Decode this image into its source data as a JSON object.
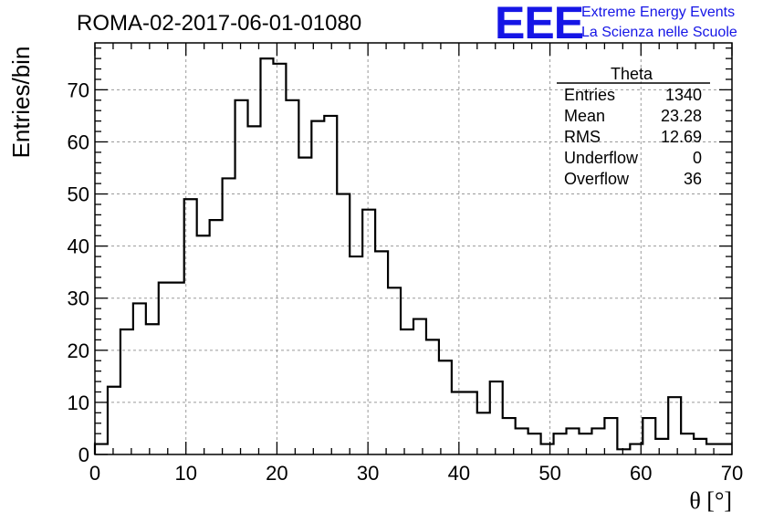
{
  "header": {
    "run_title": "ROMA-02-2017-06-01-01080",
    "logo_text": "EEE",
    "logo_line1": "Extreme Energy Events",
    "logo_line2": "La Scienza nelle Scuole",
    "logo_color": "#1515e6"
  },
  "stats": {
    "name": "Theta",
    "rows": [
      {
        "label": "Entries",
        "value": "1340"
      },
      {
        "label": "Mean",
        "value": "23.28"
      },
      {
        "label": "RMS",
        "value": "12.69"
      },
      {
        "label": "Underflow",
        "value": "0"
      },
      {
        "label": "Overflow",
        "value": "36"
      }
    ]
  },
  "chart_data": {
    "type": "histogram",
    "title": "ROMA-02-2017-06-01-01080",
    "xlabel": "θ [°]",
    "ylabel": "Entries/bin",
    "xlim": [
      0,
      70
    ],
    "ylim": [
      0,
      79
    ],
    "xticks": [
      0,
      10,
      20,
      30,
      40,
      50,
      60,
      70
    ],
    "yticks": [
      0,
      10,
      20,
      30,
      40,
      50,
      60,
      70
    ],
    "grid": true,
    "bin_width": 1.4,
    "bin_edges_start": 0,
    "values": [
      2,
      13,
      24,
      29,
      25,
      33,
      33,
      49,
      42,
      45,
      53,
      68,
      63,
      76,
      75,
      68,
      57,
      64,
      65,
      50,
      38,
      47,
      39,
      32,
      24,
      26,
      22,
      18,
      12,
      12,
      8,
      14,
      7,
      5,
      4,
      2,
      4,
      5,
      4,
      5,
      7,
      1,
      2,
      7,
      3,
      11,
      4,
      3,
      2,
      2
    ],
    "line_color": "#000000",
    "grid_color": "#9a9a9a"
  }
}
